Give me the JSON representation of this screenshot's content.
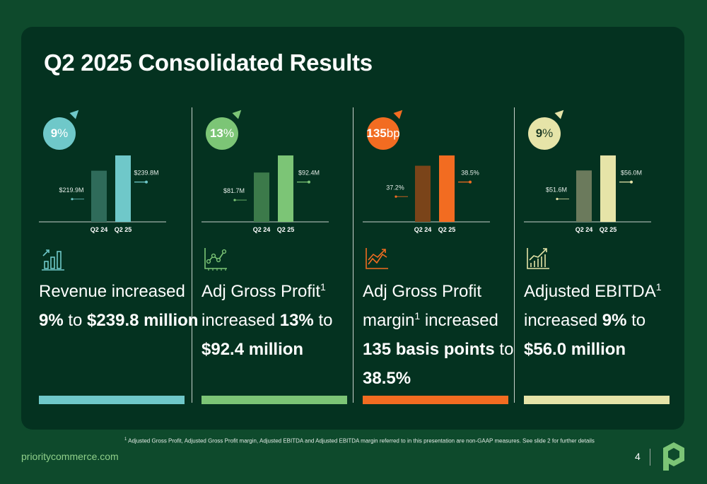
{
  "title": "Q2 2025 Consolidated Results",
  "footnote": {
    "mark": "1",
    "text": "Adjusted Gross Profit, Adjusted Gross Profit margin, Adjusted EBITDA and Adjusted EBITDA margin referred to in this presentation are non-GAAP measures. See slide 2 for further details"
  },
  "website": "prioritycommerce.com",
  "page_number": "4",
  "metrics": [
    {
      "badge_value": "9",
      "badge_unit": "%",
      "color": "#6fc8c9",
      "prev_bar_color": "#2f6b5a",
      "icon": "bar-chart-growth-icon",
      "desc_html": "Revenue increased <b>9%</b> to <b>$239.8 million</b>"
    },
    {
      "badge_value": "13",
      "badge_unit": "%",
      "color": "#7cc576",
      "prev_bar_color": "#3c7a4a",
      "icon": "scatter-trend-icon",
      "desc_html": "Adj Gross Profit<sup>1</sup> increased <b>13%</b> to <b>$92.4 million</b>"
    },
    {
      "badge_value": "135",
      "badge_unit": "bp",
      "color": "#f26c21",
      "prev_bar_color": "#7a4419",
      "icon": "line-chart-up-icon",
      "desc_html": "Adj Gross Profit margin<sup>1</sup> increased <b>135 basis points</b> to <b>38.5%</b>"
    },
    {
      "badge_value": "9",
      "badge_unit": "%",
      "color": "#e6e4a8",
      "prev_bar_color": "#6b7a5c",
      "icon": "bar-line-growth-icon",
      "desc_html": "Adjusted EBITDA<sup>1</sup> increased <b>9%</b> to <b>$56.0 million</b>"
    }
  ],
  "chart_data": [
    {
      "type": "bar",
      "categories": [
        "Q2 24",
        "Q2 25"
      ],
      "values": [
        219.9,
        239.8
      ],
      "data_labels": [
        "$219.9M",
        "$239.8M"
      ]
    },
    {
      "type": "bar",
      "categories": [
        "Q2 24",
        "Q2 25"
      ],
      "values": [
        81.7,
        92.4
      ],
      "data_labels": [
        "$81.7M",
        "$92.4M"
      ]
    },
    {
      "type": "bar",
      "categories": [
        "Q2 24",
        "Q2 25"
      ],
      "values": [
        37.2,
        38.5
      ],
      "data_labels": [
        "37.2%",
        "38.5%"
      ]
    },
    {
      "type": "bar",
      "categories": [
        "Q2 24",
        "Q2 25"
      ],
      "values": [
        51.6,
        56.0
      ],
      "data_labels": [
        "$51.6M",
        "$56.0M"
      ]
    }
  ]
}
